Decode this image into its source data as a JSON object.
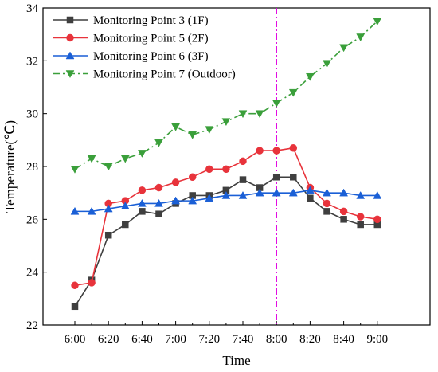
{
  "chart_data": {
    "type": "line",
    "xlabel": "Time",
    "ylabel": "Temperature(℃)",
    "ylim": [
      22,
      34
    ],
    "yticks": [
      22,
      24,
      26,
      28,
      30,
      32,
      34
    ],
    "x": [
      "6:00",
      "6:10",
      "6:20",
      "6:30",
      "6:40",
      "6:50",
      "7:00",
      "7:10",
      "7:20",
      "7:30",
      "7:40",
      "7:50",
      "8:00",
      "8:10",
      "8:20",
      "8:30",
      "8:40",
      "8:50",
      "9:00"
    ],
    "xtick_labels": [
      "6:00",
      "6:20",
      "6:40",
      "7:00",
      "7:20",
      "7:40",
      "8:00",
      "8:20",
      "8:40",
      "9:00"
    ],
    "vline": {
      "x": "8:00",
      "color": "#e000e0",
      "style": "dash-dot"
    },
    "legend": {
      "placement": "top-left"
    },
    "series": [
      {
        "name": "Monitoring Point 3 (1F)",
        "color": "#3f3f3f",
        "marker": "square",
        "linestyle": "solid",
        "values": [
          22.7,
          23.7,
          25.4,
          25.8,
          26.3,
          26.2,
          26.6,
          26.9,
          26.9,
          27.1,
          27.5,
          27.2,
          27.6,
          27.6,
          26.8,
          26.3,
          26.0,
          25.8,
          25.8
        ]
      },
      {
        "name": "Monitoring Point 5 (2F)",
        "color": "#e8333b",
        "marker": "circle",
        "linestyle": "solid",
        "values": [
          23.5,
          23.6,
          26.6,
          26.7,
          27.1,
          27.2,
          27.4,
          27.6,
          27.9,
          27.9,
          28.2,
          28.6,
          28.6,
          28.7,
          27.2,
          26.6,
          26.3,
          26.1,
          26.0
        ]
      },
      {
        "name": "Monitoring Point 6 (3F)",
        "color": "#1a5fd6",
        "marker": "triangle-up",
        "linestyle": "solid",
        "values": [
          26.3,
          26.3,
          26.4,
          26.5,
          26.6,
          26.6,
          26.7,
          26.7,
          26.8,
          26.9,
          26.9,
          27.0,
          27.0,
          27.0,
          27.1,
          27.0,
          27.0,
          26.9,
          26.9
        ]
      },
      {
        "name": "Monitoring Point 7 (Outdoor)",
        "color": "#3a9f3a",
        "marker": "triangle-down",
        "linestyle": "dash-dot",
        "values": [
          27.9,
          28.3,
          28.0,
          28.3,
          28.5,
          28.9,
          29.5,
          29.2,
          29.4,
          29.7,
          30.0,
          30.0,
          30.4,
          30.8,
          31.4,
          31.9,
          32.5,
          32.9,
          33.5
        ]
      }
    ]
  }
}
